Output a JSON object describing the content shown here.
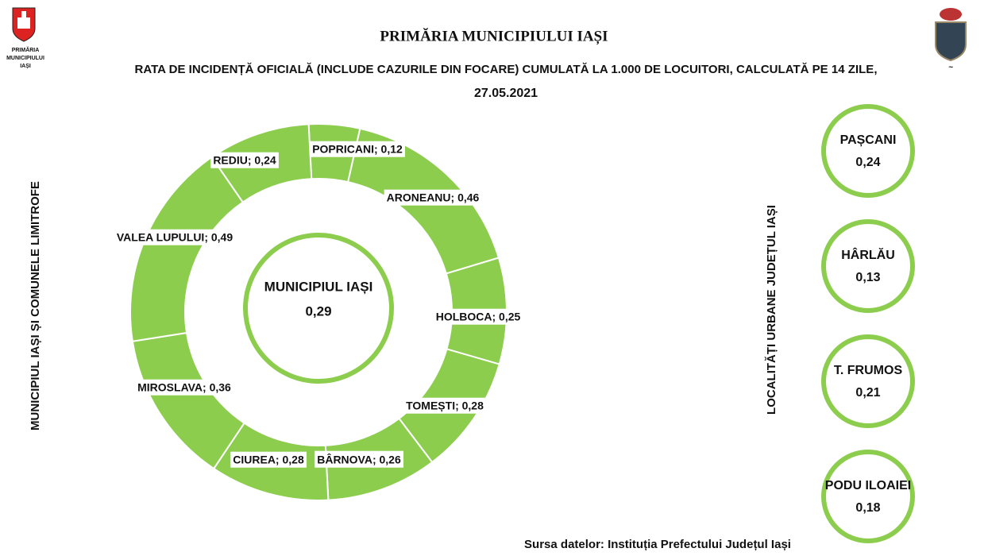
{
  "header": {
    "logo_caption": [
      "PRIMĂRIA",
      "MUNICIPIULUI",
      "IAȘI"
    ],
    "org": "PRIMĂRIA MUNICIPIULUI IAȘI",
    "title_lines": [
      "RATA DE INCIDENȚĂ OFICIALĂ (INCLUDE CAZURILE DIN FOCARE) CUMULATĂ LA 1.000 DE LOCUITORI, CALCULATĂ PE 14 ZILE,",
      "27.05.2021"
    ]
  },
  "chart_data": {
    "type": "donut",
    "axis_label": "MUNICIPIUL IAȘI ȘI COMUNELE LIMITROFE",
    "values": [
      0.12,
      0.46,
      0.25,
      0.28,
      0.26,
      0.28,
      0.36,
      0.49,
      0.24
    ],
    "value_labels": [
      "POPRICANI; 0,12",
      "ARONEANU; 0,46",
      "HOLBOCA; 0,25",
      "TOMEȘTI; 0,28",
      "BÂRNOVA; 0,26",
      "CIUREA; 0,28",
      "MIROSLAVA; 0,36",
      "VALEA LUPULUI; 0,49",
      "REDIU; 0,24"
    ],
    "color": "#8ccd4e"
  },
  "city": {
    "name": "MUNICIPIUL IAȘI",
    "value": "0,29"
  },
  "urban": {
    "title": "LOCALITĂȚI URBANE JUDEȚUL IAȘI",
    "items": [
      {
        "name": "PAȘCANI",
        "value": "0,24"
      },
      {
        "name": "HÂRLĂU",
        "value": "0,13"
      },
      {
        "name": "T. FRUMOS",
        "value": "0,21"
      },
      {
        "name": "PODU ILOAIEI",
        "value": "0,18"
      }
    ]
  },
  "source": "Sursa datelor: Instituția Prefectului Județul Iași"
}
